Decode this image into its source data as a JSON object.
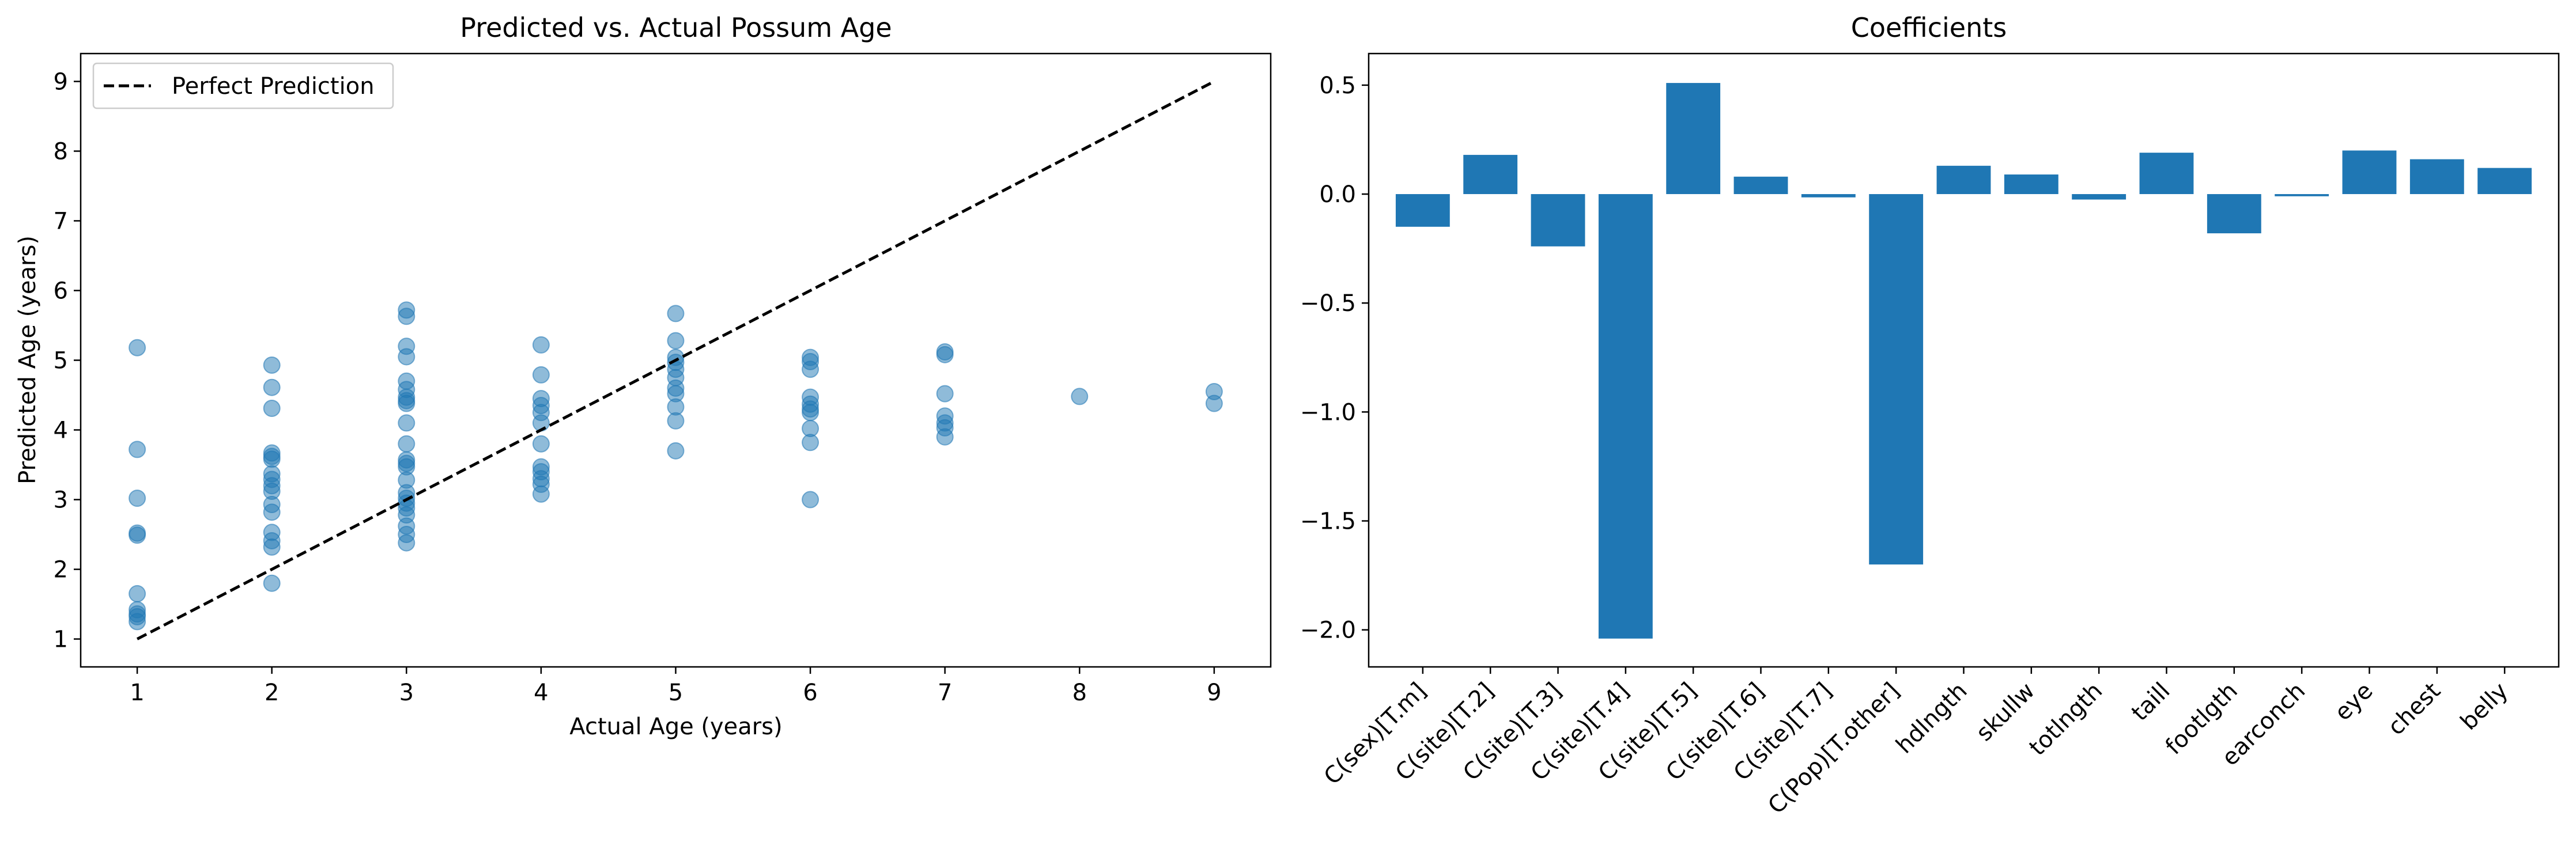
{
  "chart_data": [
    {
      "type": "scatter",
      "title": "Predicted vs. Actual Possum Age",
      "xlabel": "Actual Age (years)",
      "ylabel": "Predicted Age (years)",
      "xlim": [
        0.58,
        9.42
      ],
      "ylim": [
        0.6,
        9.4
      ],
      "xticks": [
        1,
        2,
        3,
        4,
        5,
        6,
        7,
        8,
        9
      ],
      "yticks": [
        1,
        2,
        3,
        4,
        5,
        6,
        7,
        8,
        9
      ],
      "grid": false,
      "legend": {
        "placement": "top-left",
        "entries": [
          "Perfect Prediction"
        ]
      },
      "colors": {
        "points": "#1f77b4",
        "line": "#000000"
      },
      "reference_line": {
        "name": "Perfect Prediction",
        "style": "dashed",
        "x": [
          1,
          9
        ],
        "y": [
          1,
          9
        ]
      },
      "points": [
        [
          1,
          5.18
        ],
        [
          1,
          3.72
        ],
        [
          1,
          3.02
        ],
        [
          1,
          2.52
        ],
        [
          1,
          2.49
        ],
        [
          1,
          1.65
        ],
        [
          1,
          1.42
        ],
        [
          1,
          1.36
        ],
        [
          1,
          1.32
        ],
        [
          1,
          1.25
        ],
        [
          2,
          4.93
        ],
        [
          2,
          4.61
        ],
        [
          2,
          4.31
        ],
        [
          2,
          3.67
        ],
        [
          2,
          3.62
        ],
        [
          2,
          3.58
        ],
        [
          2,
          3.37
        ],
        [
          2,
          3.29
        ],
        [
          2,
          3.2
        ],
        [
          2,
          3.12
        ],
        [
          2,
          2.93
        ],
        [
          2,
          2.82
        ],
        [
          2,
          2.53
        ],
        [
          2,
          2.41
        ],
        [
          2,
          2.32
        ],
        [
          2,
          1.8
        ],
        [
          3,
          5.72
        ],
        [
          3,
          5.63
        ],
        [
          3,
          5.2
        ],
        [
          3,
          5.05
        ],
        [
          3,
          4.7
        ],
        [
          3,
          4.58
        ],
        [
          3,
          4.47
        ],
        [
          3,
          4.42
        ],
        [
          3,
          4.38
        ],
        [
          3,
          4.1
        ],
        [
          3,
          3.8
        ],
        [
          3,
          3.57
        ],
        [
          3,
          3.52
        ],
        [
          3,
          3.47
        ],
        [
          3,
          3.28
        ],
        [
          3,
          3.1
        ],
        [
          3,
          3.02
        ],
        [
          3,
          2.95
        ],
        [
          3,
          2.88
        ],
        [
          3,
          2.78
        ],
        [
          3,
          2.62
        ],
        [
          3,
          2.5
        ],
        [
          3,
          2.38
        ],
        [
          4,
          5.22
        ],
        [
          4,
          4.79
        ],
        [
          4,
          4.45
        ],
        [
          4,
          4.35
        ],
        [
          4,
          4.25
        ],
        [
          4,
          4.1
        ],
        [
          4,
          3.8
        ],
        [
          4,
          3.47
        ],
        [
          4,
          3.4
        ],
        [
          4,
          3.3
        ],
        [
          4,
          3.22
        ],
        [
          4,
          3.08
        ],
        [
          5,
          5.67
        ],
        [
          5,
          5.28
        ],
        [
          5,
          5.04
        ],
        [
          5,
          4.97
        ],
        [
          5,
          4.87
        ],
        [
          5,
          4.75
        ],
        [
          5,
          4.6
        ],
        [
          5,
          4.52
        ],
        [
          5,
          4.33
        ],
        [
          5,
          4.13
        ],
        [
          5,
          3.7
        ],
        [
          6,
          5.04
        ],
        [
          6,
          4.98
        ],
        [
          6,
          4.87
        ],
        [
          6,
          4.47
        ],
        [
          6,
          4.37
        ],
        [
          6,
          4.3
        ],
        [
          6,
          4.25
        ],
        [
          6,
          4.02
        ],
        [
          6,
          3.82
        ],
        [
          6,
          3.0
        ],
        [
          7,
          5.12
        ],
        [
          7,
          5.08
        ],
        [
          7,
          4.52
        ],
        [
          7,
          4.2
        ],
        [
          7,
          4.1
        ],
        [
          7,
          4.03
        ],
        [
          7,
          3.9
        ],
        [
          8,
          4.48
        ],
        [
          9,
          4.55
        ],
        [
          9,
          4.38
        ]
      ]
    },
    {
      "type": "bar",
      "title": "Coefficients",
      "xlabel": "",
      "ylabel": "",
      "ylim": [
        -2.17,
        0.645
      ],
      "yticks": [
        0.5,
        0.0,
        -0.5,
        -1.0,
        -1.5,
        -2.0
      ],
      "ytick_labels": [
        "0.5",
        "0.0",
        "−0.5",
        "−1.0",
        "−1.5",
        "−2.0"
      ],
      "grid": false,
      "colors": {
        "bars": "#1f77b4"
      },
      "categories": [
        "C(sex)[T.m]",
        "C(site)[T.2]",
        "C(site)[T.3]",
        "C(site)[T.4]",
        "C(site)[T.5]",
        "C(site)[T.6]",
        "C(site)[T.7]",
        "C(Pop)[T.other]",
        "hdlngth",
        "skullw",
        "totlngth",
        "taill",
        "footlgth",
        "earconch",
        "eye",
        "chest",
        "belly"
      ],
      "values": [
        -0.15,
        0.18,
        -0.24,
        -2.04,
        0.51,
        0.08,
        -0.015,
        -1.7,
        0.13,
        0.09,
        -0.025,
        0.19,
        -0.18,
        -0.01,
        0.2,
        0.16,
        0.12
      ]
    }
  ]
}
